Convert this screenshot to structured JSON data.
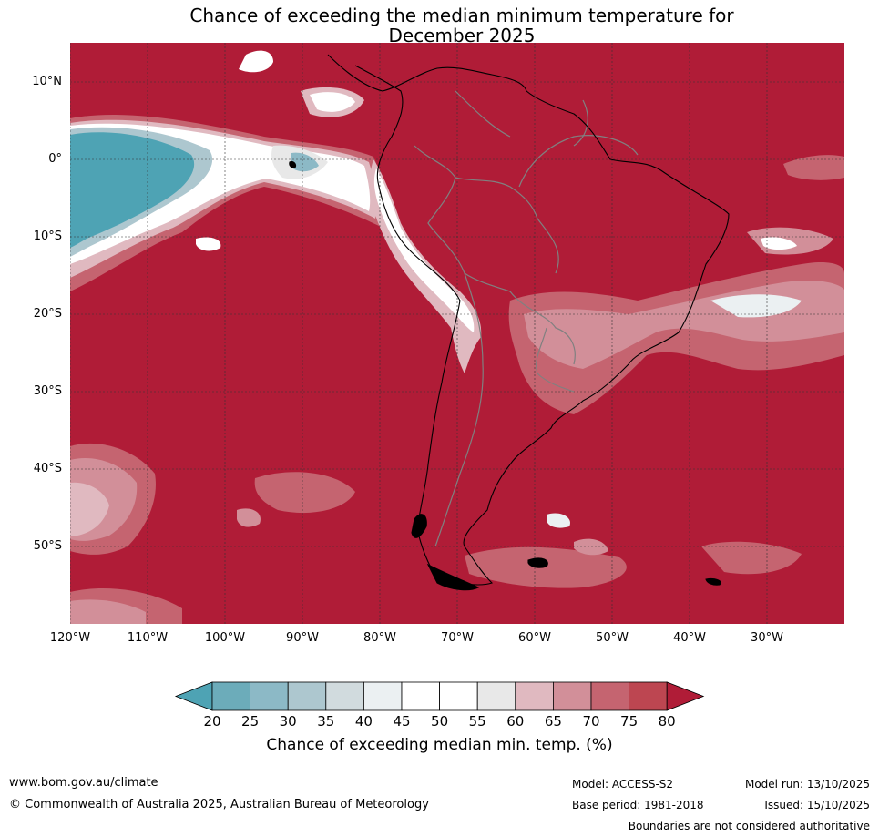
{
  "title": {
    "line1": "Chance of exceeding the median minimum temperature for",
    "line2": "December 2025"
  },
  "map": {
    "latitude_labels": [
      "10°N",
      "0°",
      "10°S",
      "20°S",
      "30°S",
      "40°S",
      "50°S"
    ],
    "longitude_labels": [
      "120°W",
      "110°W",
      "100°W",
      "90°W",
      "80°W",
      "70°W",
      "60°W",
      "50°W",
      "40°W",
      "30°W"
    ],
    "colors": {
      "background_80plus": "#b01c37",
      "land_outline": "#000000",
      "country_border": "#808080",
      "gridline": "#333333"
    }
  },
  "colorbar": {
    "ticks": [
      "20",
      "25",
      "30",
      "35",
      "40",
      "45",
      "50",
      "55",
      "60",
      "65",
      "70",
      "75",
      "80"
    ],
    "colors": [
      "#4ea3b4",
      "#6cacba",
      "#8cb9c6",
      "#adc7cf",
      "#d1dbde",
      "#ebf0f2",
      "#ffffff",
      "#ffffff",
      "#e8e8e8",
      "#e0b9c0",
      "#d28f99",
      "#c56470",
      "#bd4651",
      "#b01c37"
    ],
    "label": "Chance of exceeding median min. temp. (%)"
  },
  "footer": {
    "url": "www.bom.gov.au/climate",
    "copyright": "© Commonwealth of Australia 2025, Australian Bureau of Meteorology",
    "model": "Model: ACCESS-S2",
    "base_period": "Base period: 1981-2018",
    "model_run": "Model run: 13/10/2025",
    "issued": "Issued: 15/10/2025",
    "boundaries": "Boundaries are not considered authoritative"
  }
}
